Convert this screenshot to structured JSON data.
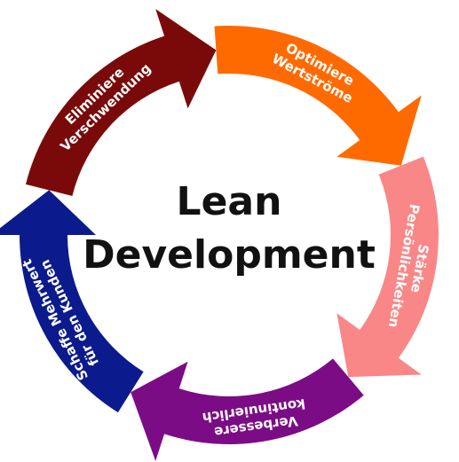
{
  "center": {
    "line1": "Lean",
    "line2": "Development"
  },
  "segments": [
    {
      "lines": [
        "Schaffe Mehrwert",
        "für den Kunden"
      ],
      "color": "#0b1a8c"
    },
    {
      "lines": [
        "Eliminiere",
        "Verschwendung"
      ],
      "color": "#7a0a0a"
    },
    {
      "lines": [
        "Optimiere",
        "Wertströme"
      ],
      "color": "#ff6a00"
    },
    {
      "lines": [
        "Stärke",
        "Persönlichkeiten"
      ],
      "color": "#f98787"
    },
    {
      "lines": [
        "Verbessere",
        "kontinuierlich"
      ],
      "color": "#7b0c86"
    }
  ]
}
